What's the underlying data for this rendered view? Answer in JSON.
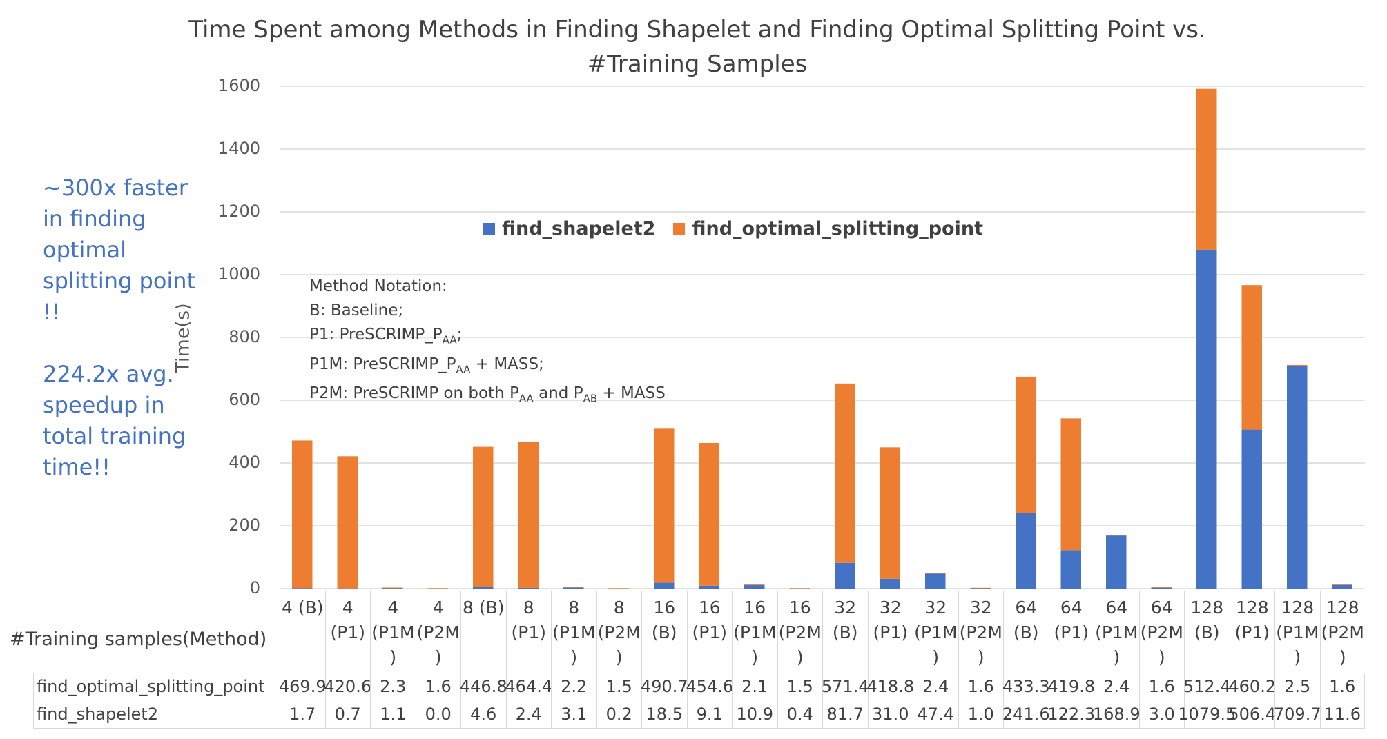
{
  "chart_data": {
    "type": "stacked_bar",
    "title": "Time Spent among Methods in Finding Shapelet and Finding Optimal Splitting Point vs. #Training Samples",
    "y_label": "Time(s)",
    "x_label": "#Training samples(Method)",
    "categories": [
      "4 (B)",
      "4 (P1)",
      "4 (P1M)",
      "4 (P2M)",
      "8 (B)",
      "8 (P1)",
      "8 (P1M)",
      "8 (P2M)",
      "16 (B)",
      "16 (P1)",
      "16 (P1M)",
      "16 (P2M)",
      "32 (B)",
      "32 (P1)",
      "32 (P1M)",
      "32 (P2M)",
      "64 (B)",
      "64 (P1)",
      "64 (P1M)",
      "64 (P2M)",
      "128 (B)",
      "128 (P1)",
      "128 (P1M)",
      "128 (P2M)"
    ],
    "series": [
      {
        "name": "find_shapelet2",
        "color": "#4472c4",
        "values": [
          1.7,
          0.7,
          1.1,
          0.0,
          4.6,
          2.4,
          3.1,
          0.2,
          18.5,
          9.1,
          10.9,
          0.4,
          81.7,
          31.0,
          47.4,
          1.0,
          241.6,
          122.3,
          168.9,
          3.0,
          1079.5,
          506.4,
          709.7,
          11.6
        ],
        "value_labels": [
          "1.7",
          "0.7",
          "1.1",
          "0.0",
          "4.6",
          "2.4",
          "3.1",
          "0.2",
          "18.5",
          "9.1",
          "10.9",
          "0.4",
          "81.7",
          "31.0",
          "47.4",
          "1.0",
          "241.6",
          "122.3",
          "168.9",
          "3.0",
          "1079.5",
          "506.4",
          "709.7",
          "11.6"
        ]
      },
      {
        "name": "find_optimal_splitting_point",
        "color": "#ed7d31",
        "values": [
          469.9,
          420.6,
          2.3,
          1.6,
          446.8,
          464.4,
          2.2,
          1.5,
          490.7,
          454.6,
          2.1,
          1.5,
          571.4,
          418.8,
          2.4,
          1.6,
          433.3,
          419.8,
          2.4,
          1.6,
          512.4,
          460.2,
          2.5,
          1.6
        ],
        "value_labels": [
          "469.9",
          "420.6",
          "2.3",
          "1.6",
          "446.8",
          "464.4",
          "2.2",
          "1.5",
          "490.7",
          "454.6",
          "2.1",
          "1.5",
          "571.4",
          "418.8",
          "2.4",
          "1.6",
          "433.3",
          "419.8",
          "2.4",
          "1.6",
          "512.4",
          "460.2",
          "2.5",
          "1.6"
        ]
      }
    ],
    "ylim": [
      0,
      1600
    ],
    "yticks": [
      0,
      200,
      400,
      600,
      800,
      1000,
      1200,
      1400,
      1600
    ],
    "grid": true,
    "annotations": [
      "~300x faster in finding optimal splitting point !!",
      "224.2x avg. speedup in total training time!!"
    ],
    "notation": [
      [
        "Method Notation:"
      ],
      [
        "B: Baseline;"
      ],
      [
        "P1: PreSCRIMP_P",
        {
          "sub": "AA"
        },
        ";"
      ],
      [
        "P1M: PreSCRIMP_P",
        {
          "sub": "AA"
        },
        " + MASS;"
      ],
      [
        "P2M: PreSCRIMP on both P",
        {
          "sub": "AA"
        },
        " and P",
        {
          "sub": "AB"
        },
        " + MASS"
      ]
    ]
  }
}
